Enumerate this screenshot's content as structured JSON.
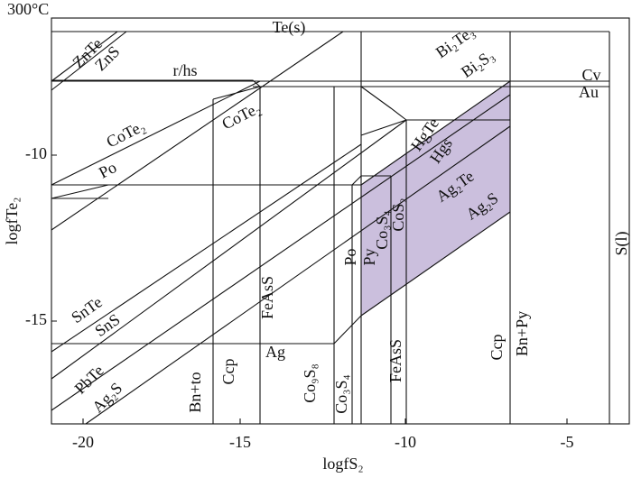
{
  "title": "300°C",
  "axes": {
    "x": {
      "label": "logfS₂",
      "ticks": [
        "-20",
        "-15",
        "-10",
        "-5"
      ]
    },
    "y": {
      "label": "logfTe₂",
      "ticks": [
        "-10",
        "-15"
      ]
    }
  },
  "labels": [
    "Te(s)",
    "ZnTe",
    "ZnS",
    "r/hs",
    "CoTe₂",
    "CoTe₂",
    "Po",
    "Po",
    "Bi₂Te₃",
    "Bi₂S₃",
    "Cv",
    "Au",
    "HgTe",
    "Hgs",
    "Ag₂Te",
    "Ag₂S",
    "Py",
    "Co₃S₄",
    "CoS₂",
    "SnTe",
    "SnS",
    "FeAsS",
    "Ag",
    "Co₉S₈",
    "Co₃S₄",
    "FeAsS",
    "PbTe",
    "Ag₂S",
    "Bn+to",
    "Ccp",
    "Ccp",
    "Bn+Py",
    "S(l)"
  ]
}
